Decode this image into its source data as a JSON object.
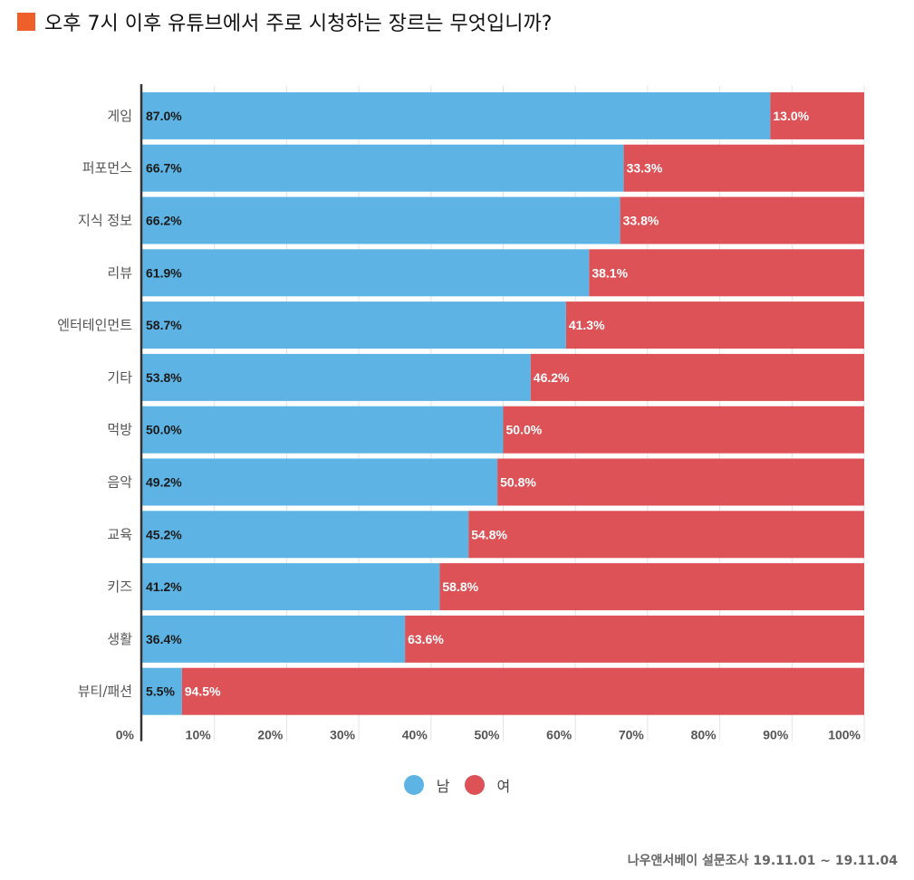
{
  "title": "오후 7시 이후  유튜브에서 주로 시청하는 장르는 무엇입니까?",
  "source": "나우앤서베이 설문조사 19.11.01 ~ 19.11.04",
  "colors": {
    "male": "#5db4e4",
    "female": "#dc5256",
    "title_square": "#ee5f2a"
  },
  "chart_data": {
    "type": "bar",
    "orientation": "horizontal",
    "stacked": true,
    "categories": [
      "게임",
      "퍼포먼스",
      "지식 정보",
      "리뷰",
      "엔터테인먼트",
      "기타",
      "먹방",
      "음악",
      "교육",
      "키즈",
      "생활",
      "뷰티/패션"
    ],
    "series": [
      {
        "name": "남",
        "values": [
          87.0,
          66.7,
          66.2,
          61.9,
          58.7,
          53.8,
          50.0,
          49.2,
          45.2,
          41.2,
          36.4,
          5.5
        ]
      },
      {
        "name": "여",
        "values": [
          13.0,
          33.3,
          33.8,
          38.1,
          41.3,
          46.2,
          50.0,
          50.8,
          54.8,
          58.8,
          63.6,
          94.5
        ]
      }
    ],
    "value_labels": {
      "male": [
        "87.0%",
        "66.7%",
        "66.2%",
        "61.9%",
        "58.7%",
        "53.8%",
        "50.0%",
        "49.2%",
        "45.2%",
        "41.2%",
        "36.4%",
        "5.5%"
      ],
      "female": [
        "13.0%",
        "33.3%",
        "33.8%",
        "38.1%",
        "41.3%",
        "46.2%",
        "50.0%",
        "50.8%",
        "54.8%",
        "58.8%",
        "63.6%",
        "94.5%"
      ]
    },
    "xticks": [
      0,
      10,
      20,
      30,
      40,
      50,
      60,
      70,
      80,
      90,
      100
    ],
    "xtick_labels": [
      "0%",
      "10%",
      "20%",
      "30%",
      "40%",
      "50%",
      "60%",
      "70%",
      "80%",
      "90%",
      "100%"
    ],
    "xlim": [
      0,
      100
    ],
    "grid": true,
    "legend": {
      "position": "bottom-center",
      "entries": [
        "남",
        "여"
      ]
    }
  }
}
